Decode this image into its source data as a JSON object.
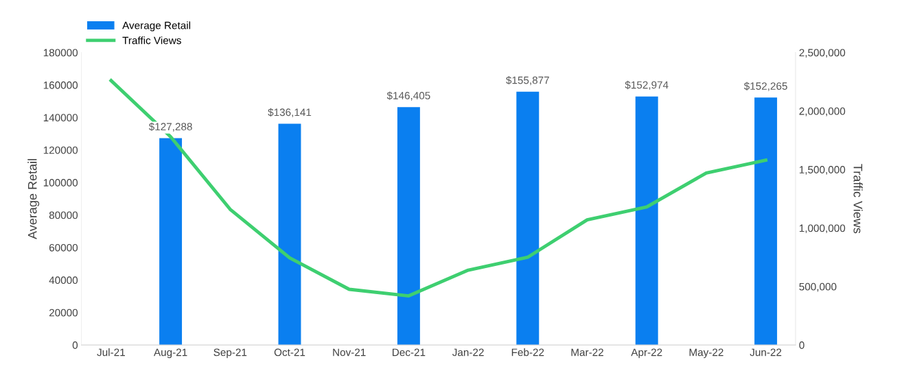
{
  "chart_data": {
    "type": "bar",
    "categories": [
      "Jul-21",
      "Aug-21",
      "Sep-21",
      "Oct-21",
      "Nov-21",
      "Dec-21",
      "Jan-22",
      "Feb-22",
      "Mar-22",
      "Apr-22",
      "May-22",
      "Jun-22"
    ],
    "series": [
      {
        "name": "Average Retail",
        "color": "#0a7ff0",
        "values": [
          null,
          127288,
          null,
          136141,
          null,
          146405,
          null,
          155877,
          null,
          152974,
          null,
          152265
        ],
        "value_labels": [
          null,
          "$127,288",
          null,
          "$136,141",
          null,
          "$146,405",
          null,
          "$155,877",
          null,
          "$152,974",
          null,
          "$152,265"
        ]
      },
      {
        "name": "Traffic Views",
        "type": "line",
        "axis": "y2",
        "color": "#3ecf70",
        "values": [
          2260000,
          1780000,
          1160000,
          745000,
          476000,
          420000,
          640000,
          750000,
          1070000,
          1180000,
          1470000,
          1580000
        ]
      }
    ],
    "ylabel": "Average Retail",
    "y2label": "Traffic Views",
    "ylim": [
      0,
      180000
    ],
    "yticks": [
      0,
      20000,
      40000,
      60000,
      80000,
      100000,
      120000,
      140000,
      160000,
      180000
    ],
    "y2lim": [
      0,
      2500000
    ],
    "y2ticks": [
      {
        "value": 0,
        "label": "0"
      },
      {
        "value": 500000,
        "label": "500,000"
      },
      {
        "value": 1000000,
        "label": "1,000,000"
      },
      {
        "value": 1500000,
        "label": "1,500,000"
      },
      {
        "value": 2000000,
        "label": "2,000,000"
      },
      {
        "value": 2500000,
        "label": "2,500,000"
      }
    ],
    "grid": false,
    "legend": "top left",
    "marker": "none",
    "line_style": "solid"
  }
}
